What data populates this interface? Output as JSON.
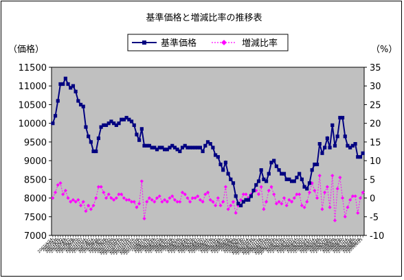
{
  "chart_data": {
    "type": "line",
    "title": "基準価格と増減比率の推移表",
    "y_left_label": "（価格）",
    "y_right_label": "（%）",
    "y_left_ticks": [
      "7000",
      "7500",
      "8000",
      "8500",
      "9000",
      "9500",
      "10000",
      "10500",
      "11000",
      "11500"
    ],
    "y_right_ticks": [
      "-10",
      "-5",
      "0",
      "5",
      "10",
      "15",
      "20",
      "25",
      "30",
      "35"
    ],
    "ylim_left": [
      7000,
      11500
    ],
    "ylim_right": [
      -10,
      35
    ],
    "grid": false,
    "plot_background": "#c0c0c0",
    "legend_position": "top",
    "series": [
      {
        "name": "基準価格",
        "axis": "left",
        "color": "#000080",
        "marker": "square",
        "values": [
          10000,
          10200,
          10600,
          11050,
          11050,
          11200,
          11050,
          10950,
          11000,
          10850,
          10600,
          10500,
          10450,
          9900,
          9650,
          9500,
          9250,
          9250,
          9600,
          9900,
          9950,
          9950,
          10000,
          10050,
          10000,
          9950,
          10000,
          10100,
          10100,
          10150,
          10100,
          10050,
          9950,
          9700,
          9550,
          9850,
          9400,
          9400,
          9400,
          9350,
          9350,
          9300,
          9350,
          9350,
          9300,
          9300,
          9350,
          9400,
          9350,
          9300,
          9250,
          9350,
          9400,
          9350,
          9350,
          9350,
          9350,
          9350,
          9350,
          9250,
          9400,
          9500,
          9450,
          9350,
          9150,
          9100,
          8900,
          8750,
          8950,
          8650,
          8500,
          8400,
          8050,
          7850,
          7800,
          7900,
          7950,
          7950,
          8050,
          8200,
          8350,
          8450,
          8750,
          8500,
          8450,
          8650,
          8950,
          9000,
          8850,
          8750,
          8650,
          8650,
          8500,
          8500,
          8450,
          8450,
          8550,
          8650,
          8500,
          8300,
          8250,
          8400,
          8750,
          8900,
          8900,
          9450,
          9200,
          9350,
          9600,
          9350,
          9950,
          9400,
          9650,
          10150,
          10150,
          9650,
          9400,
          9350,
          9400,
          9450,
          9100,
          9100,
          9200
        ]
      },
      {
        "name": "増減比率",
        "axis": "right",
        "color": "#ff00ff",
        "marker": "diamond",
        "values": [
          0,
          1.5,
          3.5,
          4,
          1,
          2,
          0,
          -1,
          -0.5,
          -1,
          -0.5,
          -2,
          -1,
          -3.5,
          -2,
          -3,
          -2,
          0,
          3,
          3,
          1.5,
          0,
          1,
          0,
          -0.5,
          0,
          1,
          1,
          0,
          -0.5,
          -0.5,
          -1,
          -1,
          -2.5,
          -1.5,
          4.5,
          -5.5,
          -1,
          0,
          -0.5,
          -1,
          0,
          0.5,
          -1,
          -0.5,
          -1,
          0,
          0.5,
          -0.5,
          -1,
          -1,
          1.5,
          1,
          0,
          -1,
          0,
          0,
          0.5,
          -0.5,
          -1,
          1,
          1.5,
          -0.5,
          -1,
          -2,
          0,
          -2,
          -1,
          3,
          -3,
          -2,
          -1,
          -4,
          -2,
          -0.5,
          1,
          1,
          0,
          1,
          2,
          2,
          1,
          3,
          -3,
          -1,
          2,
          3,
          1,
          -1.5,
          -1,
          -1.5,
          0,
          -2,
          -0.5,
          -1,
          0,
          1,
          1,
          -2,
          -2.5,
          -1,
          1.5,
          4,
          2,
          0,
          6,
          -3,
          1.5,
          3,
          -2.5,
          6,
          -6,
          2.5,
          5.5,
          0,
          -5,
          -2.5,
          -0.5,
          0.5,
          0.5,
          -4,
          0,
          1.5
        ]
      }
    ],
    "x_labels": [
      "2007/4/24",
      "2007/5/1",
      "2007/5/8",
      "2007/5/15",
      "2007/5/22",
      "2007/5/29",
      "2007/6/5",
      "2007/6/12",
      "2007/6/19",
      "2007/6/26",
      "2007/7/3",
      "2007/7/10",
      "2007/7/17",
      "2007/7/24",
      "2007/7/31",
      "2007/8/7",
      "2007/8/14",
      "2007/8/21",
      "2007/8/28",
      "2007/9/4",
      "2007/9/11",
      "2007/9/18",
      "2007/9/25",
      "2007/10/2",
      "2007/10/9",
      "2007/10/16",
      "2007/10/23",
      "2007/10/30",
      "2007/11/6",
      "2007/11/13",
      "2007/11/20",
      "2007/11/27",
      "2007/12/4",
      "2007/12/11",
      "2007/12/18",
      "2007/12/25",
      "2008/1/1",
      "2008/1/8",
      "2008/1/15",
      "2008/1/22",
      "2008/1/29",
      "2008/2/5",
      "2008/2/12",
      "2008/2/19",
      "2008/2/26",
      "2008/3/4",
      "2008/3/11",
      "2008/3/18",
      "2008/3/25",
      "2008/4/1",
      "2008/4/8",
      "2008/4/15",
      "2008/4/22",
      "2008/4/29",
      "2008/5/6",
      "2008/5/13",
      "2008/5/20",
      "2008/5/27",
      "2008/6/3",
      "2008/6/10",
      "2008/6/17",
      "2008/6/24",
      "2008/7/1",
      "2008/7/8",
      "2008/7/15",
      "2008/7/22",
      "2008/7/29",
      "2008/8/5",
      "2008/8/12",
      "2008/8/19",
      "2008/8/26",
      "2008/9/2",
      "2008/9/9",
      "2008/9/16",
      "2008/9/23",
      "2008/9/30",
      "2008/10/7",
      "2008/10/14",
      "2008/10/21",
      "2008/10/28",
      "2008/11/4",
      "2008/11/11",
      "2008/11/18",
      "2008/11/25",
      "2008/12/2",
      "2008/12/9",
      "2008/12/16",
      "2008/12/23",
      "2008/12/30",
      "2009/1/6",
      "2009/1/13",
      "2009/1/20",
      "2009/1/27",
      "2009/2/3",
      "2009/2/10",
      "2009/2/17",
      "2009/2/24",
      "2009/3/3",
      "2009/3/10",
      "2009/3/17",
      "2009/3/24",
      "2009/3/31",
      "2009/4/7",
      "2009/4/14",
      "2009/4/21",
      "2009/4/28",
      "2009/5/5",
      "2009/5/12",
      "2009/5/19",
      "2009/5/26",
      "2009/6/2",
      "2009/6/9",
      "2009/6/16",
      "2009/6/23",
      "2009/6/30",
      "2009/7/7",
      "2009/7/14",
      "2009/7/21",
      "2009/7/28",
      "2009/8/4",
      "2009/8/11",
      "2009/8/18",
      "2009/8/25"
    ]
  }
}
